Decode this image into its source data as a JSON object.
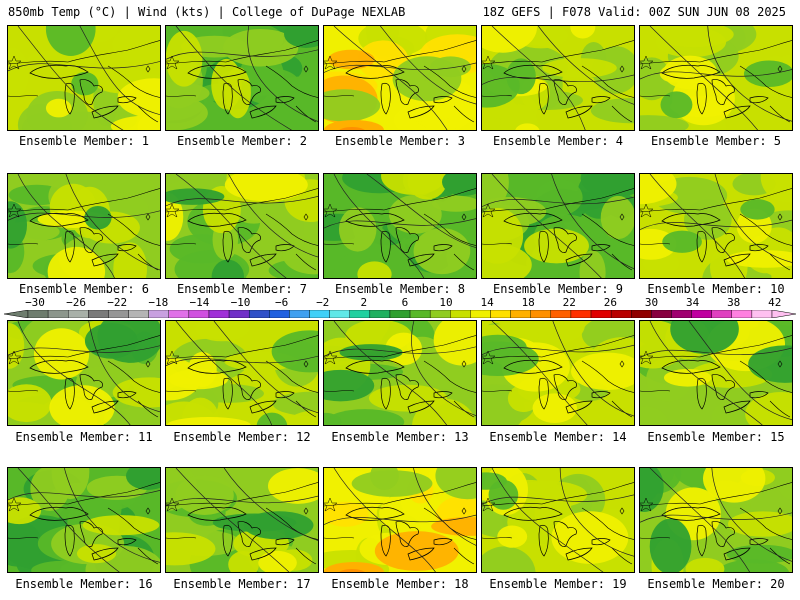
{
  "header": {
    "left": "850mb Temp (°C) | Wind (kts) | College of DuPage NEXLAB",
    "right": "18Z GEFS | F078 Valid: 00Z SUN JUN 08 2025"
  },
  "colorbar": {
    "tick_labels": [
      "−30",
      "−26",
      "−22",
      "−18",
      "−14",
      "−10",
      "−6",
      "−2",
      "2",
      "6",
      "10",
      "14",
      "18",
      "22",
      "26",
      "30",
      "34",
      "38",
      "42"
    ],
    "colors": [
      "#6e7d6e",
      "#8c968c",
      "#a8b0a8",
      "#7a7a7a",
      "#969696",
      "#b4b4b4",
      "#c8a0e0",
      "#e070e8",
      "#d050e0",
      "#a030d8",
      "#7030c8",
      "#3050c8",
      "#2060e0",
      "#40a0f0",
      "#40d0f8",
      "#60e8e8",
      "#20d0a0",
      "#20b060",
      "#30a030",
      "#58b828",
      "#90cc20",
      "#c8e000",
      "#f0f000",
      "#ffe000",
      "#ffb000",
      "#ff9000",
      "#ff6000",
      "#ff3000",
      "#e00000",
      "#b80000",
      "#900000",
      "#880040",
      "#a00070",
      "#c000a0",
      "#e040c0",
      "#ff80e0",
      "#ffc0f0"
    ]
  },
  "members": [
    {
      "label": "Ensemble Member: 1",
      "style": "warm"
    },
    {
      "label": "Ensemble Member: 2",
      "style": "cool"
    },
    {
      "label": "Ensemble Member: 3",
      "style": "hot"
    },
    {
      "label": "Ensemble Member: 4",
      "style": "warm"
    },
    {
      "label": "Ensemble Member: 5",
      "style": "warm"
    },
    {
      "label": "Ensemble Member: 6",
      "style": "mild"
    },
    {
      "label": "Ensemble Member: 7",
      "style": "mild"
    },
    {
      "label": "Ensemble Member: 8",
      "style": "cool"
    },
    {
      "label": "Ensemble Member: 9",
      "style": "cool"
    },
    {
      "label": "Ensemble Member: 10",
      "style": "warm"
    },
    {
      "label": "Ensemble Member: 11",
      "style": "mild"
    },
    {
      "label": "Ensemble Member: 12",
      "style": "warm"
    },
    {
      "label": "Ensemble Member: 13",
      "style": "mild"
    },
    {
      "label": "Ensemble Member: 14",
      "style": "warm"
    },
    {
      "label": "Ensemble Member: 15",
      "style": "mild"
    },
    {
      "label": "Ensemble Member: 16",
      "style": "cool"
    },
    {
      "label": "Ensemble Member: 17",
      "style": "mild"
    },
    {
      "label": "Ensemble Member: 18",
      "style": "hot"
    },
    {
      "label": "Ensemble Member: 19",
      "style": "warm"
    },
    {
      "label": "Ensemble Member: 20",
      "style": "mild"
    }
  ],
  "temp_colors": {
    "6": "#30a030",
    "8": "#58b828",
    "10": "#90cc20",
    "12": "#c8e000",
    "14": "#f0f000",
    "16": "#ffe000",
    "18": "#ffb000",
    "20": "#ff9000"
  }
}
